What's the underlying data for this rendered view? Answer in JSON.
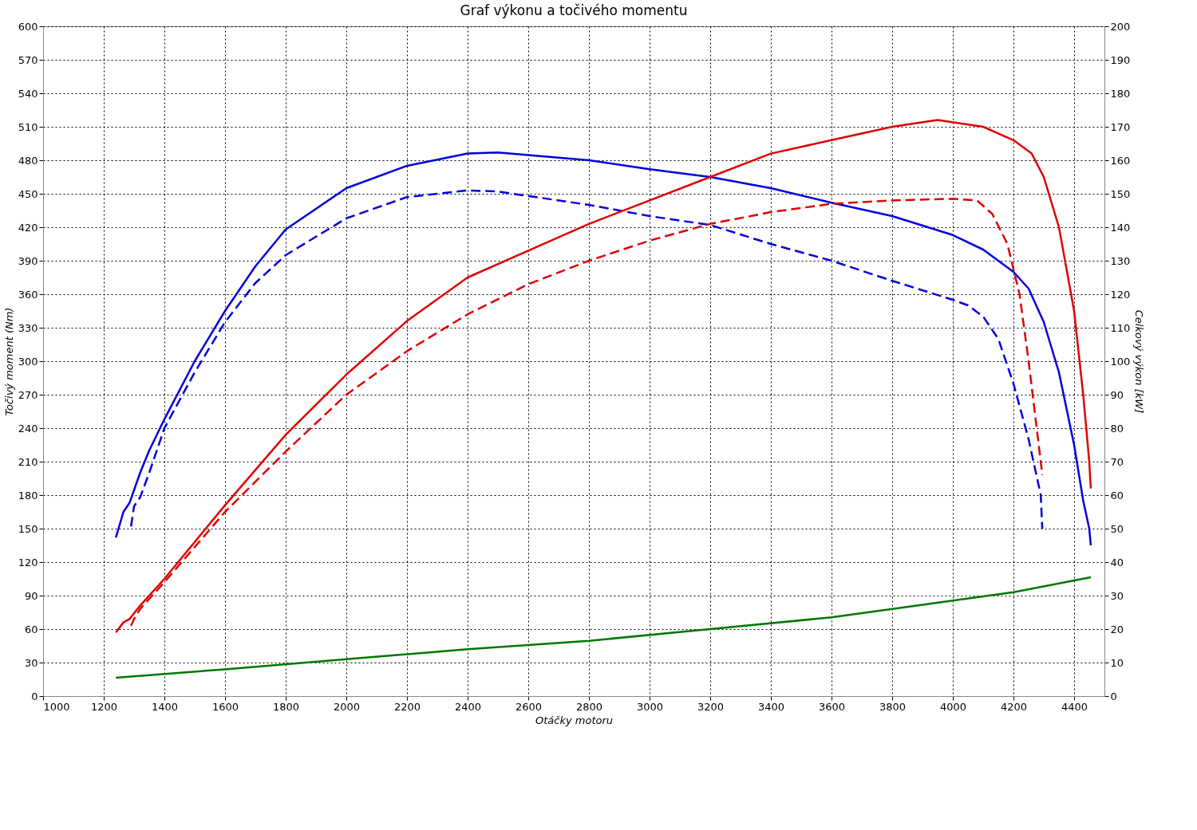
{
  "chart_data": {
    "type": "line",
    "title": "Graf výkonu a točivého momentu",
    "xlabel": "Otáčky motoru",
    "ylabel": "Točivý moment (Nm)",
    "y2label": "Celkový výkon [kW]",
    "xlim": [
      1000,
      4500
    ],
    "xticks": [
      1000,
      1200,
      1400,
      1600,
      1800,
      2000,
      2200,
      2400,
      2600,
      2800,
      3000,
      3200,
      3400,
      3600,
      3800,
      4000,
      4200,
      4400
    ],
    "ylim": [
      0,
      600
    ],
    "yticks": [
      0,
      30,
      60,
      90,
      120,
      150,
      180,
      210,
      240,
      270,
      300,
      330,
      360,
      390,
      420,
      450,
      480,
      510,
      540,
      570,
      600
    ],
    "y2lim": [
      0,
      200
    ],
    "y2ticks": [
      0,
      10,
      20,
      30,
      40,
      50,
      60,
      70,
      80,
      90,
      100,
      110,
      120,
      130,
      140,
      150,
      160,
      170,
      180,
      190,
      200
    ],
    "grid": true,
    "series": [
      {
        "color": "#0000dd",
        "line_style": "solid",
        "x": [
          1240,
          1265,
          1285,
          1320,
          1350,
          1400,
          1500,
          1600,
          1700,
          1800,
          2000,
          2200,
          2400,
          2500,
          2800,
          3000,
          3200,
          3400,
          3600,
          3800,
          4000,
          4100,
          4200,
          4250,
          4300,
          4350,
          4400,
          4430,
          4450,
          4455
        ],
        "values": [
          142,
          165,
          173,
          200,
          220,
          248,
          300,
          345,
          385,
          418,
          455,
          475,
          486,
          487,
          480,
          472,
          465,
          455,
          442,
          430,
          413,
          400,
          380,
          365,
          335,
          290,
          225,
          175,
          150,
          135
        ]
      },
      {
        "color": "#0000dd",
        "line_style": "dashed",
        "x": [
          1290,
          1300,
          1320,
          1350,
          1400,
          1500,
          1600,
          1700,
          1800,
          2000,
          2200,
          2400,
          2500,
          2800,
          3000,
          3200,
          3400,
          3600,
          3800,
          4000,
          4050,
          4100,
          4150,
          4200,
          4250,
          4290,
          4295
        ],
        "values": [
          152,
          170,
          178,
          200,
          240,
          290,
          335,
          370,
          395,
          428,
          447,
          453,
          452,
          440,
          430,
          422,
          405,
          390,
          372,
          355,
          350,
          340,
          320,
          280,
          230,
          180,
          150
        ]
      },
      {
        "color": "#e00000",
        "line_style": "solid",
        "axis": "y2",
        "x": [
          1240,
          1265,
          1285,
          1320,
          1400,
          1600,
          1800,
          2000,
          2200,
          2400,
          2600,
          2800,
          3000,
          3200,
          3400,
          3600,
          3800,
          3950,
          4100,
          4200,
          4260,
          4300,
          4350,
          4400,
          4430,
          4450,
          4455
        ],
        "values": [
          19,
          22,
          23,
          27,
          35,
          57,
          78,
          96,
          112,
          125,
          133,
          141,
          148,
          155,
          162,
          166,
          170,
          172,
          170,
          166,
          162,
          155,
          140,
          115,
          90,
          70,
          62
        ]
      },
      {
        "color": "#e00000",
        "line_style": "dashed",
        "axis": "y2",
        "x": [
          1290,
          1300,
          1320,
          1400,
          1600,
          1800,
          2000,
          2200,
          2400,
          2600,
          2800,
          3000,
          3200,
          3400,
          3600,
          3800,
          4000,
          4080,
          4130,
          4180,
          4220,
          4250,
          4270,
          4290,
          4295
        ],
        "values": [
          21,
          23,
          26,
          34,
          55,
          73,
          90,
          103,
          114,
          123,
          130,
          136,
          141,
          144.5,
          147,
          148,
          148.5,
          148,
          144,
          135,
          120,
          100,
          85,
          70,
          66
        ]
      },
      {
        "color": "#007700",
        "line_style": "solid",
        "axis": "y2",
        "x": [
          1240,
          1600,
          2000,
          2400,
          2800,
          3200,
          3600,
          4000,
          4200,
          4455
        ],
        "values": [
          5.5,
          8,
          11,
          14,
          16.5,
          20,
          23.5,
          28.5,
          31,
          35.5
        ]
      }
    ]
  }
}
